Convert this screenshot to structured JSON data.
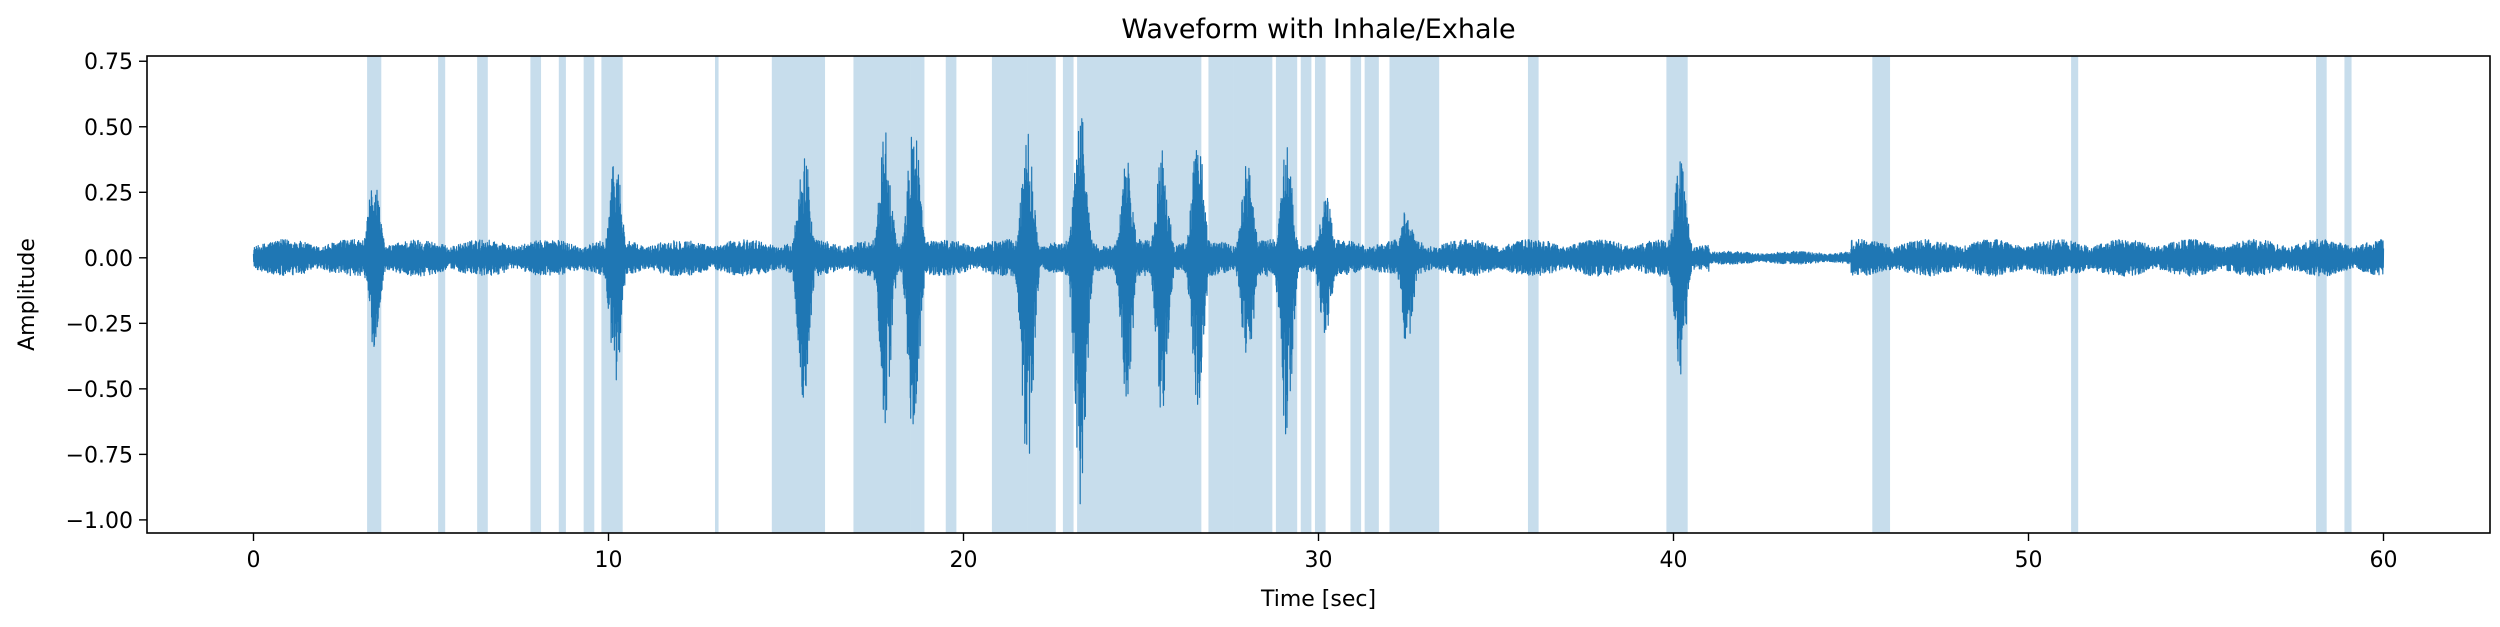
{
  "chart_data": {
    "type": "line",
    "title": "Waveform with Inhale/Exhale",
    "xlabel": "Time [sec]",
    "ylabel": "Amplitude",
    "xlim": [
      -3,
      63
    ],
    "ylim": [
      -1.05,
      0.77
    ],
    "grid": false,
    "x_ticks": [
      0,
      10,
      20,
      30,
      40,
      50,
      60
    ],
    "x_tick_labels": [
      "0",
      "10",
      "20",
      "30",
      "40",
      "50",
      "60"
    ],
    "y_ticks": [
      0.75,
      0.5,
      0.25,
      0.0,
      -0.25,
      -0.5,
      -0.75,
      -1.0
    ],
    "y_tick_labels": [
      "0.75",
      "0.50",
      "0.25",
      "0.00",
      "−0.25",
      "−0.50",
      "−0.75",
      "−1.00"
    ],
    "series": [
      {
        "name": "waveform",
        "color": "#1f77b4",
        "time_range": [
          0,
          60
        ],
        "baseline_amplitude": 0.05,
        "events": [
          {
            "t": 3.4,
            "peak": 0.32,
            "trough": -0.35
          },
          {
            "t": 10.2,
            "peak": 0.4,
            "trough": -0.47
          },
          {
            "t": 15.5,
            "peak": 0.45,
            "trough": -0.58
          },
          {
            "t": 17.8,
            "peak": 0.5,
            "trough": -0.65
          },
          {
            "t": 18.6,
            "peak": 0.57,
            "trough": -0.72
          },
          {
            "t": 21.8,
            "peak": 0.49,
            "trough": -0.85
          },
          {
            "t": 23.3,
            "peak": 0.59,
            "trough": -0.98
          },
          {
            "t": 24.6,
            "peak": 0.39,
            "trough": -0.55
          },
          {
            "t": 25.6,
            "peak": 0.42,
            "trough": -0.62
          },
          {
            "t": 26.6,
            "peak": 0.49,
            "trough": -0.58
          },
          {
            "t": 28.0,
            "peak": 0.38,
            "trough": -0.45
          },
          {
            "t": 29.1,
            "peak": 0.43,
            "trough": -0.7
          },
          {
            "t": 30.2,
            "peak": 0.25,
            "trough": -0.31
          },
          {
            "t": 32.5,
            "peak": 0.2,
            "trough": -0.35
          },
          {
            "t": 40.2,
            "peak": 0.4,
            "trough": -0.47
          }
        ]
      }
    ],
    "shaded_regions": {
      "label": "Inhale/Exhale",
      "color": "#1f77b4",
      "spans": [
        [
          3.2,
          3.6
        ],
        [
          5.2,
          5.4
        ],
        [
          6.3,
          6.6
        ],
        [
          7.8,
          8.1
        ],
        [
          8.6,
          8.8
        ],
        [
          9.3,
          9.6
        ],
        [
          9.8,
          10.4
        ],
        [
          13.0,
          13.1
        ],
        [
          14.6,
          16.1
        ],
        [
          16.9,
          18.5
        ],
        [
          18.5,
          18.9
        ],
        [
          19.5,
          19.8
        ],
        [
          20.8,
          21.8
        ],
        [
          21.8,
          22.6
        ],
        [
          22.8,
          23.1
        ],
        [
          23.2,
          26.7
        ],
        [
          26.9,
          27.6
        ],
        [
          27.6,
          28.7
        ],
        [
          28.8,
          29.4
        ],
        [
          29.5,
          29.8
        ],
        [
          29.9,
          30.2
        ],
        [
          30.9,
          31.2
        ],
        [
          31.3,
          31.7
        ],
        [
          32.0,
          33.4
        ],
        [
          35.9,
          36.2
        ],
        [
          39.8,
          40.4
        ],
        [
          45.6,
          46.1
        ],
        [
          51.2,
          51.4
        ],
        [
          58.1,
          58.4
        ],
        [
          58.9,
          59.1
        ]
      ]
    }
  }
}
